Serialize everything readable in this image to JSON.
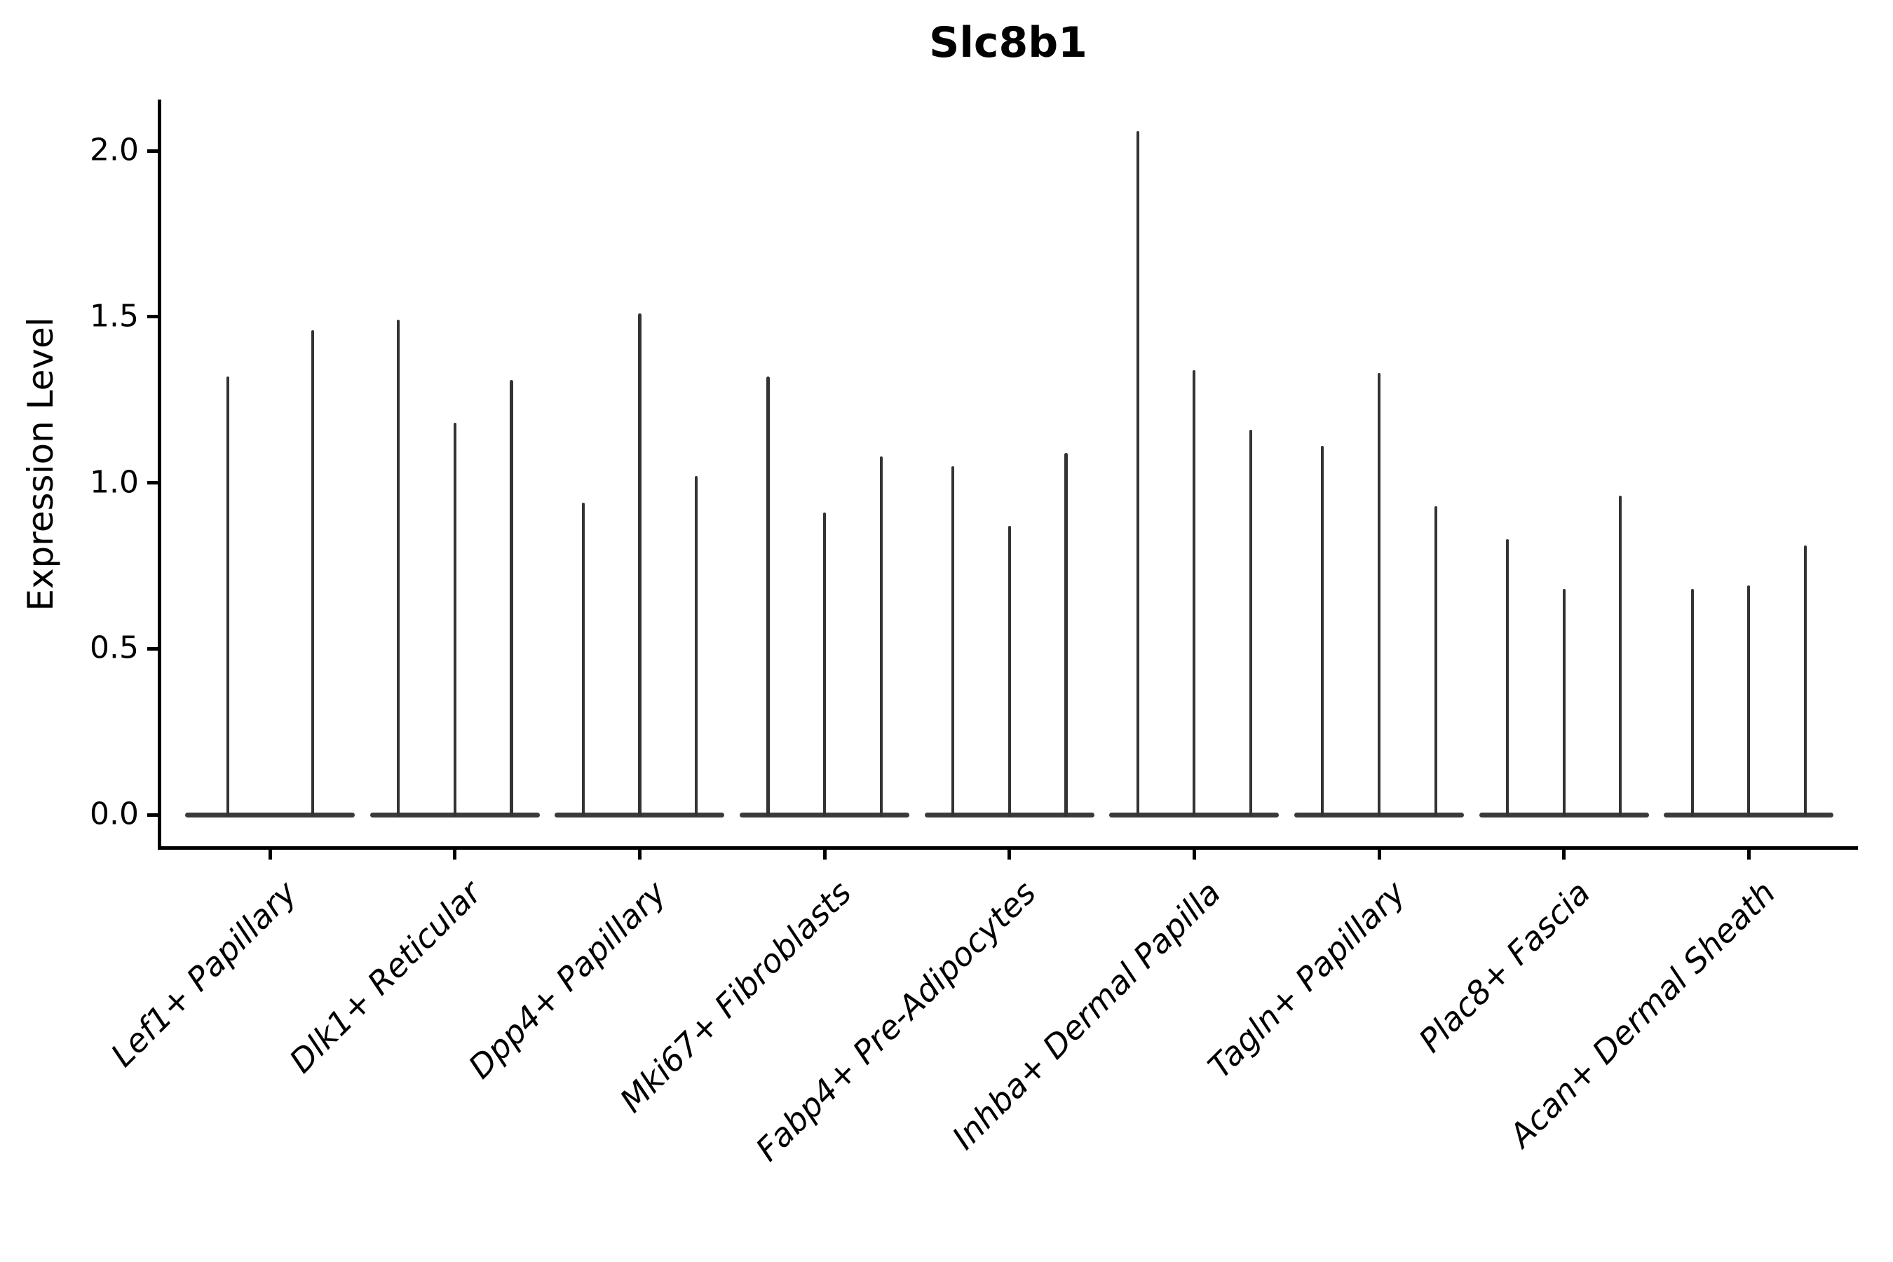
{
  "title": "Slc8b1",
  "y_axis": {
    "label": "Expression Level"
  },
  "colors": {
    "background": "#ffffff",
    "axis": "#000000",
    "text": "#000000",
    "violin_spike": "#333333",
    "violin_base": "#3a3a3a"
  },
  "chart_data": {
    "type": "violin",
    "title": "Slc8b1",
    "xlabel": "",
    "ylabel": "Expression Level",
    "ylim": [
      0,
      2.12
    ],
    "yticks": [
      0.0,
      0.5,
      1.0,
      1.5,
      2.0
    ],
    "ytick_labels": [
      "0.0",
      "0.5",
      "1.0",
      "1.5",
      "2.0"
    ],
    "grid": false,
    "legend": "none",
    "orientation": "vertical",
    "style": "thin spike violins: flat wide base at expression 0 with a narrow vertical line up to the maximum expression value",
    "categories": [
      "Lef1+ Papillary",
      "Dlk1+ Reticular",
      "Dpp4+ Papillary",
      "Mki67+ Fibroblasts",
      "Fabp4+ Pre-Adipocytes",
      "Inhba+ Dermal Papilla",
      "Tagln+ Papillary",
      "Plac8+ Fascia",
      "Acan+ Dermal Sheath"
    ],
    "groups": [
      {
        "label": "Lef1+ Papillary",
        "violin_maxima": [
          1.32,
          1.46
        ]
      },
      {
        "label": "Dlk1+ Reticular",
        "violin_maxima": [
          1.49,
          1.18,
          1.31
        ]
      },
      {
        "label": "Dpp4+ Papillary",
        "violin_maxima": [
          0.94,
          1.51,
          1.02
        ]
      },
      {
        "label": "Mki67+ Fibroblasts",
        "violin_maxima": [
          1.32,
          0.91,
          1.08
        ]
      },
      {
        "label": "Fabp4+ Pre-Adipocytes",
        "violin_maxima": [
          1.05,
          0.87,
          1.09
        ]
      },
      {
        "label": "Inhba+ Dermal Papilla",
        "violin_maxima": [
          2.06,
          1.34,
          1.16
        ]
      },
      {
        "label": "Tagln+ Papillary",
        "violin_maxima": [
          1.11,
          1.33,
          0.93
        ]
      },
      {
        "label": "Plac8+ Fascia",
        "violin_maxima": [
          0.83,
          0.68,
          0.96
        ]
      },
      {
        "label": "Acan+ Dermal Sheath",
        "violin_maxima": [
          0.68,
          0.69,
          0.81
        ]
      }
    ]
  }
}
